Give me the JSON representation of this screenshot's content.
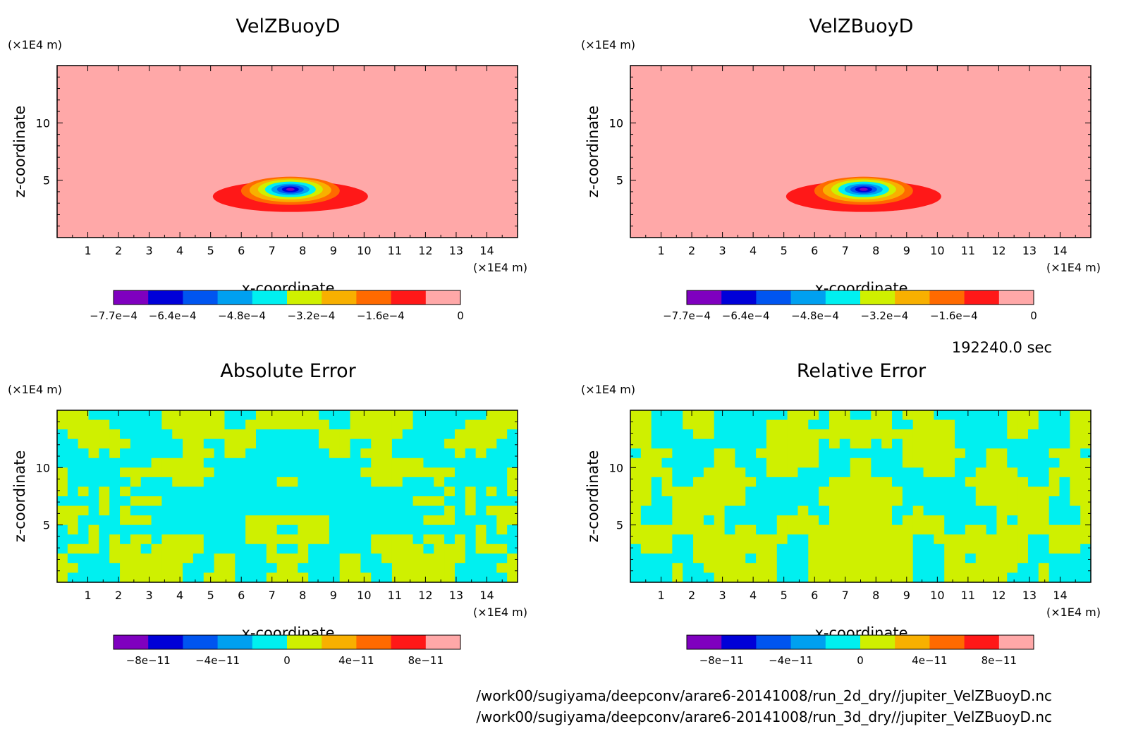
{
  "chart_data": [
    {
      "type": "heatmap",
      "title": "VelZBuoyD",
      "xlabel": "x-coordinate",
      "ylabel": "z-coordinate",
      "x_unit": "(×1E4 m)",
      "y_unit": "(×1E4 m)",
      "xlim": [
        0,
        15
      ],
      "ylim": [
        0,
        15
      ],
      "x_ticks": [
        "1",
        "2",
        "3",
        "4",
        "5",
        "6",
        "7",
        "8",
        "9",
        "10",
        "11",
        "12",
        "13",
        "14"
      ],
      "y_ticks": [
        "5",
        "10"
      ],
      "colorbar": {
        "colors": [
          "#7f00bf",
          "#0000d8",
          "#0055f0",
          "#00a0f0",
          "#00f0f0",
          "#cff000",
          "#f8b000",
          "#ff6a00",
          "#ff1818",
          "#ffa8a8"
        ],
        "tick_labels": [
          "−7.7e−4",
          "−6.4e−4",
          "−4.8e−4",
          "−3.2e−4",
          "−1.6e−4",
          "0"
        ]
      },
      "field": {
        "background": "#ffa8a8",
        "min_value": -0.00077,
        "min_location_x": 7.6,
        "min_location_z": 4.2
      }
    },
    {
      "type": "heatmap",
      "title": "VelZBuoyD",
      "xlabel": "x-coordinate",
      "ylabel": "z-coordinate",
      "x_unit": "(×1E4 m)",
      "y_unit": "(×1E4 m)",
      "xlim": [
        0,
        15
      ],
      "ylim": [
        0,
        15
      ],
      "x_ticks": [
        "1",
        "2",
        "3",
        "4",
        "5",
        "6",
        "7",
        "8",
        "9",
        "10",
        "11",
        "12",
        "13",
        "14"
      ],
      "y_ticks": [
        "5",
        "10"
      ],
      "colorbar": {
        "colors": [
          "#7f00bf",
          "#0000d8",
          "#0055f0",
          "#00a0f0",
          "#00f0f0",
          "#cff000",
          "#f8b000",
          "#ff6a00",
          "#ff1818",
          "#ffa8a8"
        ],
        "tick_labels": [
          "−7.7e−4",
          "−6.4e−4",
          "−4.8e−4",
          "−3.2e−4",
          "−1.6e−4",
          "0"
        ]
      },
      "field": {
        "background": "#ffa8a8",
        "min_value": -0.00077,
        "min_location_x": 7.6,
        "min_location_z": 4.2
      }
    },
    {
      "type": "heatmap",
      "title": "Absolute Error",
      "xlabel": "x-coordinate",
      "ylabel": "z-coordinate",
      "x_unit": "(×1E4 m)",
      "y_unit": "(×1E4 m)",
      "xlim": [
        0,
        15
      ],
      "ylim": [
        0,
        15
      ],
      "x_ticks": [
        "1",
        "2",
        "3",
        "4",
        "5",
        "6",
        "7",
        "8",
        "9",
        "10",
        "11",
        "12",
        "13",
        "14"
      ],
      "y_ticks": [
        "5",
        "10"
      ],
      "colorbar": {
        "colors": [
          "#7f00bf",
          "#0000d8",
          "#0055f0",
          "#00a0f0",
          "#00f0f0",
          "#cff000",
          "#f8b000",
          "#ff6a00",
          "#ff1818",
          "#ffa8a8"
        ],
        "tick_labels": [
          "−8e−11",
          "−4e−11",
          "0",
          "4e−11",
          "8e−11"
        ]
      },
      "field": {
        "colors_present": [
          "#cff000",
          "#00f0f0"
        ],
        "pattern": "noise",
        "seed": 1
      }
    },
    {
      "type": "heatmap",
      "title": "Relative Error",
      "xlabel": "x-coordinate",
      "ylabel": "z-coordinate",
      "x_unit": "(×1E4 m)",
      "y_unit": "(×1E4 m)",
      "xlim": [
        0,
        15
      ],
      "ylim": [
        0,
        15
      ],
      "x_ticks": [
        "1",
        "2",
        "3",
        "4",
        "5",
        "6",
        "7",
        "8",
        "9",
        "10",
        "11",
        "12",
        "13",
        "14"
      ],
      "y_ticks": [
        "5",
        "10"
      ],
      "colorbar": {
        "colors": [
          "#7f00bf",
          "#0000d8",
          "#0055f0",
          "#00a0f0",
          "#00f0f0",
          "#cff000",
          "#f8b000",
          "#ff6a00",
          "#ff1818",
          "#ffa8a8"
        ],
        "tick_labels": [
          "−8e−11",
          "−4e−11",
          "0",
          "4e−11",
          "8e−11"
        ]
      },
      "field": {
        "colors_present": [
          "#00f0f0",
          "#cff000"
        ],
        "pattern": "noise",
        "seed": 2
      }
    }
  ],
  "time_label": "192240.0 sec",
  "file_paths": [
    "/work00/sugiyama/deepconv/arare6-20141008/run_2d_dry//jupiter_VelZBuoyD.nc",
    "/work00/sugiyama/deepconv/arare6-20141008/run_3d_dry//jupiter_VelZBuoyD.nc"
  ]
}
